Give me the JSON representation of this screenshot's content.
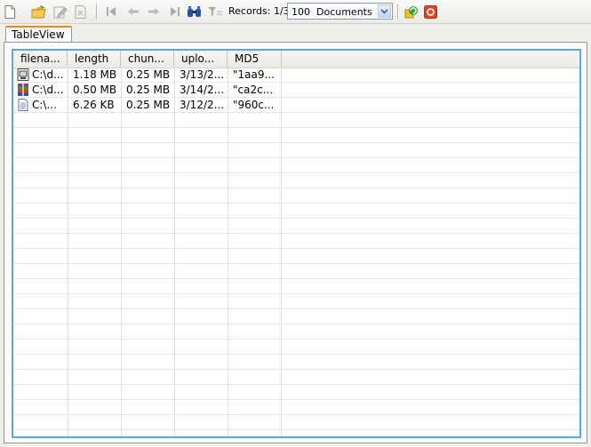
{
  "toolbar": {
    "icons": [
      "new-document-icon",
      "open-folder-icon",
      "edit-icon",
      "delete-icon",
      "first-record-icon",
      "prev-record-icon",
      "next-record-icon",
      "last-record-icon",
      "find-icon",
      "filter-icon",
      "refresh-icon",
      "stop-icon"
    ],
    "records_label": "Records: 1/3",
    "documents_select": "100  Documents"
  },
  "tab": {
    "label": "TableView"
  },
  "table": {
    "columns": [
      "filena...",
      "length",
      "chun...",
      "uplo...",
      "MD5"
    ],
    "rows": [
      {
        "icon": "disk-image-file-icon",
        "filename": "C:\\d...",
        "length": "1.18 MB",
        "chunk": "0.25 MB",
        "upload": "3/13/2...",
        "md5": "\"1aa9..."
      },
      {
        "icon": "archive-file-icon",
        "filename": "C:\\d...",
        "length": "0.50 MB",
        "chunk": "0.25 MB",
        "upload": "3/14/2...",
        "md5": "\"ca2c..."
      },
      {
        "icon": "text-file-icon",
        "filename": "C:\\...",
        "length": "6.26 KB",
        "chunk": "0.25 MB",
        "upload": "3/12/2...",
        "md5": "\"960c..."
      }
    ]
  },
  "colors": {
    "grid_border": "#5aa9e6",
    "tab_accent": "#e68b2c",
    "stop_red": "#e0482a"
  }
}
